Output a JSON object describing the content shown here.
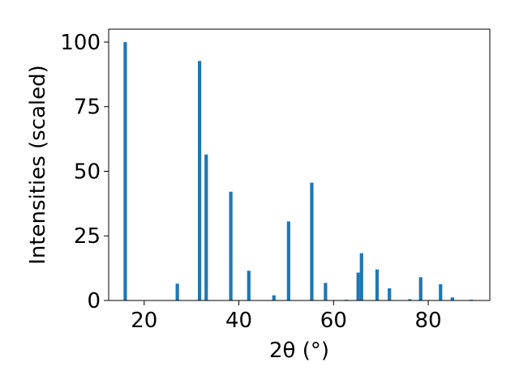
{
  "chart_data": {
    "type": "bar",
    "title": "",
    "xlabel": "2θ (°)",
    "ylabel": "Intensities (scaled)",
    "xlim": [
      12.5,
      93.0
    ],
    "ylim": [
      0,
      105
    ],
    "xticks": [
      20,
      40,
      60,
      80
    ],
    "yticks": [
      0,
      25,
      50,
      75,
      100
    ],
    "grid": false,
    "bar_color": "#1f77b4",
    "x": [
      16.0,
      27.0,
      31.7,
      33.1,
      38.3,
      42.1,
      47.4,
      50.5,
      55.4,
      58.3,
      62.7,
      65.2,
      65.9,
      69.2,
      71.8,
      76.1,
      78.4,
      82.6,
      85.1,
      89.1
    ],
    "values": [
      100.0,
      6.5,
      92.7,
      56.5,
      42.1,
      11.5,
      2.0,
      30.6,
      45.6,
      6.8,
      0.3,
      10.8,
      18.3,
      12.0,
      4.7,
      0.5,
      9.0,
      6.3,
      1.2,
      0.3
    ]
  }
}
